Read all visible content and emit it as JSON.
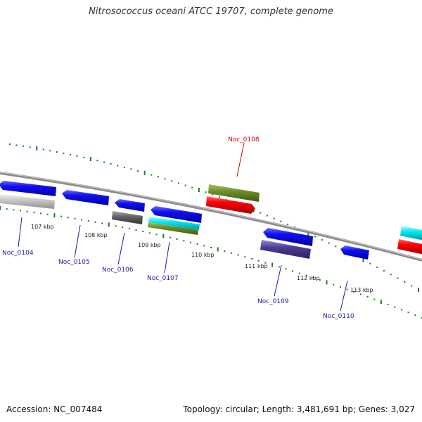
{
  "title": "Nitrosococcus oceani ATCC 19707, complete genome",
  "footer": {
    "accession": "Accession: NC_007484",
    "summary": "Topology: circular; Length: 3,481,691 bp; Genes: 3,027"
  },
  "colors": {
    "backbone": "#8c8c8c",
    "tick": "#1d7a1d",
    "label_default": "#1a1aa8",
    "label_highlight": "#cc0000"
  },
  "kbp_labels": [
    "107 kbp",
    "108 kbp",
    "109 kbp",
    "110 kbp",
    "111 kbp",
    "112 kbp",
    "113 kbp"
  ],
  "genes": [
    {
      "name": "Noc_0104",
      "highlight": false
    },
    {
      "name": "Noc_0105",
      "highlight": false
    },
    {
      "name": "Noc_0106",
      "highlight": false
    },
    {
      "name": "Noc_0107",
      "highlight": false
    },
    {
      "name": "Noc_0108",
      "highlight": true
    },
    {
      "name": "Noc_0109",
      "highlight": false
    },
    {
      "name": "Noc_0110",
      "highlight": false
    }
  ]
}
